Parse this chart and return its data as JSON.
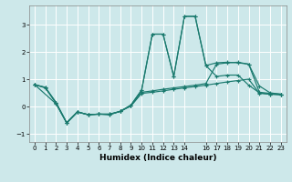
{
  "xlabel": "Humidex (Indice chaleur)",
  "background_color": "#cde8ea",
  "grid_color": "#ffffff",
  "line_color": "#1a7a6e",
  "xlim": [
    -0.5,
    23.5
  ],
  "ylim": [
    -1.3,
    3.7
  ],
  "yticks": [
    -1,
    0,
    1,
    2,
    3
  ],
  "xticks": [
    0,
    1,
    2,
    3,
    4,
    5,
    6,
    7,
    8,
    9,
    10,
    11,
    12,
    13,
    14,
    16,
    17,
    18,
    19,
    20,
    21,
    22,
    23
  ],
  "line1_x": [
    0,
    1,
    2,
    3,
    4,
    5,
    6,
    7,
    8,
    9,
    10,
    11,
    12,
    13,
    14,
    15,
    16,
    17,
    18,
    19,
    20,
    21,
    22,
    23
  ],
  "line1_y": [
    0.8,
    0.7,
    0.15,
    -0.6,
    -0.2,
    -0.3,
    -0.28,
    -0.28,
    -0.18,
    0.05,
    0.6,
    2.65,
    2.65,
    1.1,
    3.3,
    3.3,
    1.5,
    1.1,
    1.15,
    1.15,
    0.78,
    0.5,
    0.45,
    0.45
  ],
  "line2_x": [
    0,
    1,
    2,
    3,
    4,
    5,
    6,
    7,
    8,
    9,
    10,
    11,
    12,
    13,
    14,
    15,
    16,
    17,
    18,
    19,
    20,
    21,
    22,
    23
  ],
  "line2_y": [
    0.8,
    0.7,
    0.15,
    -0.6,
    -0.2,
    -0.3,
    -0.28,
    -0.28,
    -0.18,
    0.05,
    0.6,
    2.65,
    2.65,
    1.1,
    3.3,
    3.3,
    1.5,
    1.6,
    1.62,
    1.6,
    1.55,
    0.75,
    0.5,
    0.45
  ],
  "line3_x": [
    0,
    1,
    2,
    3,
    4,
    5,
    6,
    7,
    8,
    9,
    10,
    11,
    12,
    13,
    14,
    15,
    16,
    17,
    18,
    19,
    20,
    21,
    22,
    23
  ],
  "line3_y": [
    0.8,
    0.68,
    0.12,
    -0.6,
    -0.2,
    -0.3,
    -0.28,
    -0.3,
    -0.18,
    0.02,
    0.52,
    0.57,
    0.63,
    0.68,
    0.73,
    0.78,
    0.84,
    1.55,
    1.6,
    1.62,
    1.55,
    0.52,
    0.48,
    0.45
  ],
  "line4_x": [
    0,
    2,
    3,
    4,
    5,
    6,
    7,
    8,
    9,
    10,
    11,
    12,
    13,
    14,
    15,
    16,
    17,
    18,
    19,
    20,
    21,
    22,
    23
  ],
  "line4_y": [
    0.8,
    0.1,
    -0.6,
    -0.2,
    -0.3,
    -0.28,
    -0.3,
    -0.18,
    0.02,
    0.48,
    0.52,
    0.57,
    0.63,
    0.68,
    0.73,
    0.78,
    0.84,
    0.9,
    0.95,
    1.0,
    0.48,
    0.45,
    0.42
  ]
}
